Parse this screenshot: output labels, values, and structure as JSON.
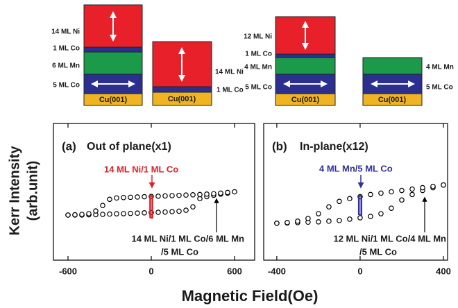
{
  "diagrams": [
    {
      "labels": [
        "14 ML Ni",
        "1 ML Co",
        "6 ML Mn",
        "5 ML Co"
      ],
      "substrate": "Cu(001)"
    },
    {
      "labels": [
        "14 ML Ni",
        "1 ML Co"
      ],
      "substrate": "Cu(001)"
    },
    {
      "labels": [
        "12 ML Ni",
        "1 ML Co",
        "4 ML Mn",
        "5 ML Co"
      ],
      "substrate": "Cu(001)"
    },
    {
      "labels": [
        "4 ML Mn",
        "5 ML Co"
      ],
      "substrate": "Cu(001)"
    }
  ],
  "y_label": [
    "Kerr Intensity",
    "(arb.unit)"
  ],
  "x_label": "Magnetic Field(Oe)",
  "chart_data": [
    {
      "type": "scatter",
      "panel": "(a)",
      "title": "Out of plane(x1)",
      "annotations": [
        "14 ML Ni/1 ML Co",
        "14 ML Ni/1 ML Co/6 ML Mn",
        "/5 ML Co"
      ],
      "xlim": [
        -705,
        745
      ],
      "ylim": [
        0,
        100
      ],
      "xticks": [
        -600,
        0,
        600
      ],
      "series": [
        {
          "color": "#000000",
          "style": "markers",
          "x": [
            -600,
            -550,
            -500,
            -450,
            -400,
            -350,
            -300,
            -250,
            -200,
            -150,
            -100,
            -50,
            0,
            50,
            100,
            150,
            200,
            250,
            300,
            350,
            400,
            450,
            500,
            550,
            600
          ],
          "values": [
            33,
            33,
            33,
            33.2,
            33.3,
            33.5,
            33.7,
            33.9,
            34,
            34.2,
            34.4,
            34.6,
            34.8,
            35,
            35.2,
            35.5,
            35.8,
            36.5,
            39,
            45,
            46.5,
            47.5,
            48.3,
            49,
            50
          ]
        },
        {
          "color": "#000000",
          "style": "markers",
          "x": [
            600,
            550,
            500,
            450,
            400,
            350,
            300,
            250,
            200,
            150,
            100,
            50,
            0,
            -50,
            -100,
            -150,
            -200,
            -250,
            -300,
            -350,
            -400,
            -450,
            -500,
            -550,
            -600
          ],
          "values": [
            50,
            49.5,
            49,
            48.6,
            48.3,
            48,
            47.8,
            47.6,
            47.4,
            47.2,
            47,
            46.8,
            46.6,
            46.4,
            46.2,
            46,
            45.8,
            45.5,
            44.5,
            40,
            36,
            34,
            33.5,
            33.2,
            33
          ]
        },
        {
          "color": "#e0202a",
          "style": "line",
          "x": [
            -8,
            -8,
            8,
            8,
            -8
          ],
          "values": [
            31,
            47,
            47,
            31,
            31
          ]
        }
      ]
    },
    {
      "type": "scatter",
      "panel": "(b)",
      "title": "In-plane(x12)",
      "annotations": [
        "4 ML Mn/5 ML Co",
        "12 ML Ni/1 ML Co/4 ML Mn",
        "/5 ML Co"
      ],
      "xlim": [
        -463,
        420
      ],
      "ylim": [
        0,
        100
      ],
      "xticks": [
        -400,
        0,
        400
      ],
      "series": [
        {
          "color": "#000000",
          "style": "markers",
          "x": [
            -400,
            -350,
            -300,
            -250,
            -200,
            -150,
            -100,
            -50,
            0,
            50,
            100,
            150,
            200,
            250,
            300,
            350,
            400
          ],
          "values": [
            27,
            27.2,
            27.5,
            27.8,
            28,
            28.5,
            29,
            30,
            31,
            32,
            34,
            38,
            44,
            48,
            51,
            53,
            55
          ]
        },
        {
          "color": "#000000",
          "style": "markers",
          "x": [
            400,
            350,
            300,
            250,
            200,
            150,
            100,
            50,
            0,
            -50,
            -100,
            -150,
            -200,
            -250,
            -300,
            -350,
            -400
          ],
          "values": [
            55,
            54,
            53,
            52,
            51,
            50,
            49,
            48,
            46.5,
            45,
            43,
            39,
            34,
            30.5,
            28.5,
            27.5,
            27
          ]
        },
        {
          "color": "#3030a0",
          "style": "line",
          "x": [
            -6,
            -6,
            6,
            6,
            -6
          ],
          "values": [
            33,
            47,
            47,
            33,
            33
          ]
        }
      ]
    }
  ]
}
